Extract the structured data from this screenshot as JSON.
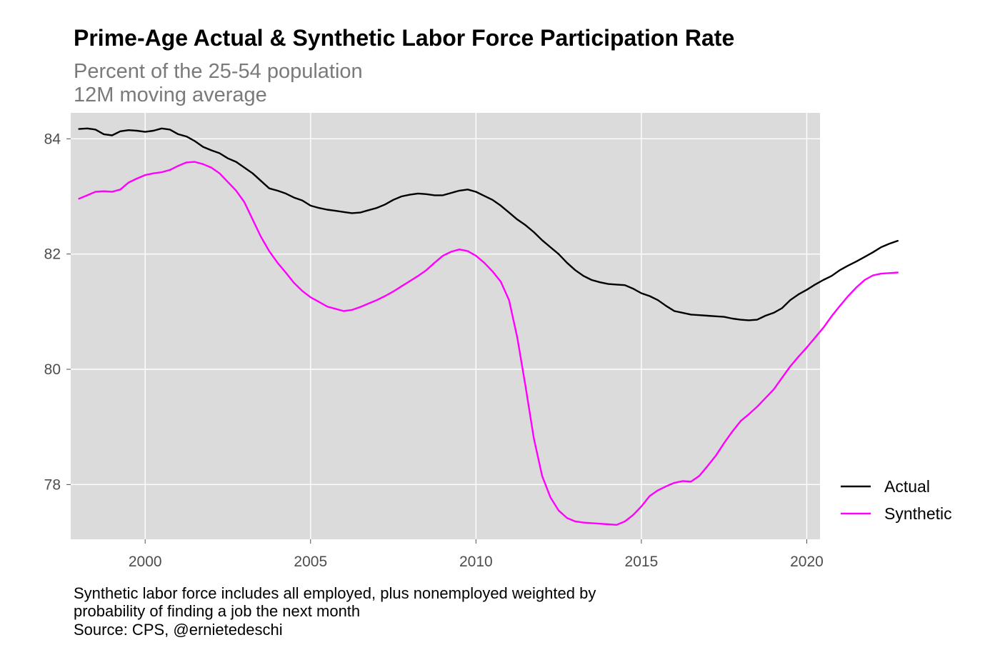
{
  "chart_data": {
    "type": "line",
    "title": "Prime-Age Actual & Synthetic Labor Force Participation Rate",
    "subtitle_lines": [
      "Percent of the 25-54 population",
      "12M moving average"
    ],
    "caption_lines": [
      "Synthetic labor force includes all employed, plus nonemployed weighted by",
      "probability of finding a job the next month",
      "Source: CPS, @ernietedeschi"
    ],
    "xlim": [
      1997.75,
      2020.4
    ],
    "ylim": [
      77.05,
      84.45
    ],
    "x_ticks": [
      2000,
      2005,
      2010,
      2015,
      2020
    ],
    "x_tick_labels": [
      "2000",
      "2005",
      "2010",
      "2015",
      "2020"
    ],
    "y_ticks": [
      78,
      80,
      82,
      84
    ],
    "y_tick_labels": [
      "78",
      "80",
      "82",
      "84"
    ],
    "grid": true,
    "legend_position": "right",
    "series": [
      {
        "name": "Actual",
        "color": "#000000",
        "points": [
          [
            1998.0,
            84.17
          ],
          [
            1998.25,
            84.18
          ],
          [
            1998.5,
            84.16
          ],
          [
            1998.75,
            84.08
          ],
          [
            1999.0,
            84.06
          ],
          [
            1999.25,
            84.13
          ],
          [
            1999.5,
            84.15
          ],
          [
            1999.75,
            84.14
          ],
          [
            2000.0,
            84.12
          ],
          [
            2000.25,
            84.14
          ],
          [
            2000.5,
            84.18
          ],
          [
            2000.75,
            84.16
          ],
          [
            2001.0,
            84.08
          ],
          [
            2001.25,
            84.04
          ],
          [
            2001.5,
            83.96
          ],
          [
            2001.75,
            83.86
          ],
          [
            2002.0,
            83.8
          ],
          [
            2002.25,
            83.75
          ],
          [
            2002.5,
            83.66
          ],
          [
            2002.75,
            83.6
          ],
          [
            2003.0,
            83.5
          ],
          [
            2003.25,
            83.4
          ],
          [
            2003.5,
            83.27
          ],
          [
            2003.75,
            83.14
          ],
          [
            2004.0,
            83.1
          ],
          [
            2004.25,
            83.05
          ],
          [
            2004.5,
            82.98
          ],
          [
            2004.75,
            82.93
          ],
          [
            2005.0,
            82.84
          ],
          [
            2005.25,
            82.8
          ],
          [
            2005.5,
            82.77
          ],
          [
            2005.75,
            82.75
          ],
          [
            2006.0,
            82.73
          ],
          [
            2006.25,
            82.71
          ],
          [
            2006.5,
            82.72
          ],
          [
            2006.75,
            82.76
          ],
          [
            2007.0,
            82.8
          ],
          [
            2007.25,
            82.86
          ],
          [
            2007.5,
            82.94
          ],
          [
            2007.75,
            83.0
          ],
          [
            2008.0,
            83.03
          ],
          [
            2008.25,
            83.05
          ],
          [
            2008.5,
            83.04
          ],
          [
            2008.75,
            83.02
          ],
          [
            2009.0,
            83.02
          ],
          [
            2009.25,
            83.06
          ],
          [
            2009.5,
            83.1
          ],
          [
            2009.75,
            83.12
          ],
          [
            2010.0,
            83.08
          ],
          [
            2010.25,
            83.01
          ],
          [
            2010.5,
            82.94
          ],
          [
            2010.75,
            82.84
          ],
          [
            2011.0,
            82.72
          ],
          [
            2011.25,
            82.6
          ],
          [
            2011.5,
            82.5
          ],
          [
            2011.75,
            82.38
          ],
          [
            2012.0,
            82.24
          ],
          [
            2012.25,
            82.12
          ],
          [
            2012.5,
            82.0
          ],
          [
            2012.75,
            81.85
          ],
          [
            2013.0,
            81.72
          ],
          [
            2013.25,
            81.62
          ],
          [
            2013.5,
            81.55
          ],
          [
            2013.75,
            81.51
          ],
          [
            2014.0,
            81.48
          ],
          [
            2014.25,
            81.47
          ],
          [
            2014.5,
            81.46
          ],
          [
            2014.75,
            81.4
          ],
          [
            2015.0,
            81.32
          ],
          [
            2015.25,
            81.27
          ],
          [
            2015.5,
            81.2
          ],
          [
            2015.75,
            81.1
          ],
          [
            2016.0,
            81.01
          ],
          [
            2016.25,
            80.98
          ],
          [
            2016.5,
            80.95
          ],
          [
            2016.75,
            80.94
          ],
          [
            2017.0,
            80.93
          ],
          [
            2017.25,
            80.92
          ],
          [
            2017.5,
            80.91
          ],
          [
            2017.75,
            80.88
          ],
          [
            2018.0,
            80.86
          ],
          [
            2018.25,
            80.85
          ],
          [
            2018.5,
            80.86
          ],
          [
            2018.75,
            80.93
          ],
          [
            2019.0,
            80.98
          ],
          [
            2019.25,
            81.06
          ],
          [
            2019.5,
            81.2
          ],
          [
            2019.75,
            81.3
          ],
          [
            2020.0,
            81.38
          ],
          [
            2020.25,
            81.47
          ],
          [
            2020.5,
            81.55
          ],
          [
            2020.75,
            81.62
          ],
          [
            2021.0,
            81.72
          ],
          [
            2021.25,
            81.8
          ],
          [
            2021.5,
            81.87
          ],
          [
            2021.75,
            81.95
          ],
          [
            2022.0,
            82.03
          ],
          [
            2022.25,
            82.12
          ],
          [
            2022.5,
            82.18
          ],
          [
            2022.75,
            82.23
          ]
        ]
      },
      {
        "name": "Synthetic",
        "color": "#ff00ff",
        "points": [
          [
            1998.0,
            82.96
          ],
          [
            1998.25,
            83.02
          ],
          [
            1998.5,
            83.08
          ],
          [
            1998.75,
            83.09
          ],
          [
            1999.0,
            83.08
          ],
          [
            1999.25,
            83.12
          ],
          [
            1999.5,
            83.24
          ],
          [
            1999.75,
            83.31
          ],
          [
            2000.0,
            83.37
          ],
          [
            2000.25,
            83.4
          ],
          [
            2000.5,
            83.42
          ],
          [
            2000.75,
            83.46
          ],
          [
            2001.0,
            83.53
          ],
          [
            2001.25,
            83.59
          ],
          [
            2001.5,
            83.6
          ],
          [
            2001.75,
            83.56
          ],
          [
            2002.0,
            83.5
          ],
          [
            2002.25,
            83.4
          ],
          [
            2002.5,
            83.25
          ],
          [
            2002.75,
            83.1
          ],
          [
            2003.0,
            82.9
          ],
          [
            2003.25,
            82.6
          ],
          [
            2003.5,
            82.3
          ],
          [
            2003.75,
            82.05
          ],
          [
            2004.0,
            81.85
          ],
          [
            2004.25,
            81.68
          ],
          [
            2004.5,
            81.5
          ],
          [
            2004.75,
            81.36
          ],
          [
            2005.0,
            81.25
          ],
          [
            2005.25,
            81.17
          ],
          [
            2005.5,
            81.09
          ],
          [
            2005.75,
            81.05
          ],
          [
            2006.0,
            81.01
          ],
          [
            2006.25,
            81.03
          ],
          [
            2006.5,
            81.08
          ],
          [
            2006.75,
            81.14
          ],
          [
            2007.0,
            81.2
          ],
          [
            2007.25,
            81.27
          ],
          [
            2007.5,
            81.35
          ],
          [
            2007.75,
            81.44
          ],
          [
            2008.0,
            81.53
          ],
          [
            2008.25,
            81.62
          ],
          [
            2008.5,
            81.72
          ],
          [
            2008.75,
            81.85
          ],
          [
            2009.0,
            81.97
          ],
          [
            2009.25,
            82.04
          ],
          [
            2009.5,
            82.08
          ],
          [
            2009.75,
            82.05
          ],
          [
            2010.0,
            81.97
          ],
          [
            2010.25,
            81.85
          ],
          [
            2010.5,
            81.7
          ],
          [
            2010.75,
            81.52
          ],
          [
            2011.0,
            81.2
          ],
          [
            2011.25,
            80.55
          ],
          [
            2011.5,
            79.7
          ],
          [
            2011.75,
            78.8
          ],
          [
            2012.0,
            78.15
          ],
          [
            2012.25,
            77.78
          ],
          [
            2012.5,
            77.55
          ],
          [
            2012.75,
            77.42
          ],
          [
            2013.0,
            77.36
          ],
          [
            2013.25,
            77.34
          ],
          [
            2013.5,
            77.33
          ],
          [
            2013.75,
            77.32
          ],
          [
            2014.0,
            77.31
          ],
          [
            2014.25,
            77.3
          ],
          [
            2014.5,
            77.36
          ],
          [
            2014.75,
            77.47
          ],
          [
            2015.0,
            77.62
          ],
          [
            2015.25,
            77.8
          ],
          [
            2015.5,
            77.9
          ],
          [
            2015.75,
            77.97
          ],
          [
            2016.0,
            78.03
          ],
          [
            2016.25,
            78.06
          ],
          [
            2016.5,
            78.05
          ],
          [
            2016.75,
            78.15
          ],
          [
            2017.0,
            78.32
          ],
          [
            2017.25,
            78.5
          ],
          [
            2017.5,
            78.72
          ],
          [
            2017.75,
            78.92
          ],
          [
            2018.0,
            79.1
          ],
          [
            2018.25,
            79.22
          ],
          [
            2018.5,
            79.35
          ],
          [
            2018.75,
            79.5
          ],
          [
            2019.0,
            79.65
          ],
          [
            2019.25,
            79.85
          ],
          [
            2019.5,
            80.05
          ],
          [
            2019.75,
            80.22
          ],
          [
            2020.0,
            80.38
          ],
          [
            2020.25,
            80.55
          ],
          [
            2020.5,
            80.72
          ],
          [
            2020.75,
            80.92
          ],
          [
            2021.0,
            81.1
          ],
          [
            2021.25,
            81.27
          ],
          [
            2021.5,
            81.42
          ],
          [
            2021.75,
            81.55
          ],
          [
            2022.0,
            81.63
          ],
          [
            2022.25,
            81.66
          ],
          [
            2022.5,
            81.67
          ],
          [
            2022.75,
            81.68
          ]
        ]
      }
    ]
  }
}
